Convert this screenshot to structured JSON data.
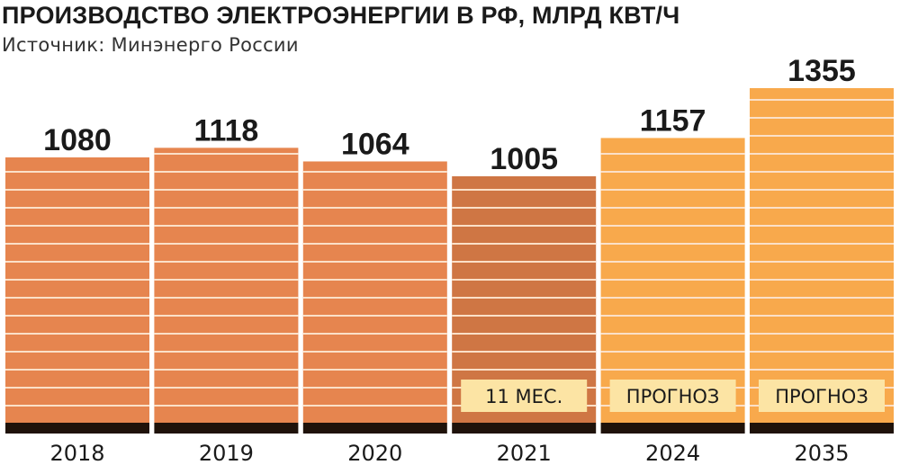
{
  "title": "ПРОИЗВОДСТВО ЭЛЕКТРОЭНЕРГИИ В РФ, МЛРД КВТ/Ч",
  "subtitle": "Источник: Минэнерго России",
  "colors": {
    "actual": "#e6854f",
    "partial": "#cf7644",
    "forecast": "#f8a94c",
    "stripe": "#fbe0c8",
    "baseline": "#1f120a",
    "note_bg": "#fce4a4"
  },
  "chart_data": {
    "type": "bar",
    "title": "ПРОИЗВОДСТВО ЭЛЕКТРОЭНЕРГИИ В РФ, МЛРД КВТ/Ч",
    "categories": [
      "2018",
      "2019",
      "2020",
      "2021",
      "2024",
      "2035"
    ],
    "values": [
      1080,
      1118,
      1064,
      1005,
      1157,
      1355
    ],
    "bar_kind": [
      "actual",
      "actual",
      "actual",
      "partial",
      "forecast",
      "forecast"
    ],
    "notes": [
      "",
      "",
      "",
      "11 МЕС.",
      "ПРОГНОЗ",
      "ПРОГНОЗ"
    ],
    "grid": false,
    "legend": "none"
  }
}
